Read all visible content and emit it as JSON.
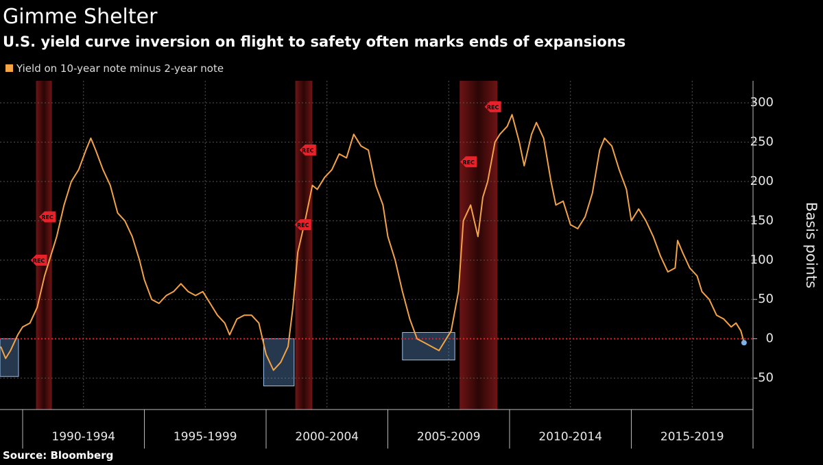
{
  "chart_data": {
    "type": "line",
    "title": "Gimme Shelter",
    "subtitle": "U.S. yield curve inversion on flight to safety often marks ends of expansions",
    "y_label": "Basis points",
    "source": "Source: Bloomberg",
    "xlim": [
      1989.07,
      2020
    ],
    "xticks": [
      {
        "value": 1992.5,
        "label": "1990-1994"
      },
      {
        "value": 1997.5,
        "label": "1995-1999"
      },
      {
        "value": 2002.5,
        "label": "2000-2004"
      },
      {
        "value": 2007.5,
        "label": "2005-2009"
      },
      {
        "value": 2012.5,
        "label": "2010-2014"
      },
      {
        "value": 2017.5,
        "label": "2015-2019"
      }
    ],
    "period_bounds": [
      1990,
      1995,
      2000,
      2005,
      2010,
      2015,
      2020
    ],
    "ylim": [
      -90,
      328
    ],
    "yticks": [
      -50,
      0,
      50,
      100,
      150,
      200,
      250,
      300
    ],
    "grid": true,
    "reference_line": 0,
    "x": [
      1989.1,
      1989.3,
      1989.5,
      1989.8,
      1990.0,
      1990.3,
      1990.6,
      1990.9,
      1991.1,
      1991.4,
      1991.7,
      1992.0,
      1992.3,
      1992.6,
      1992.8,
      1993.0,
      1993.3,
      1993.6,
      1993.9,
      1994.2,
      1994.5,
      1994.8,
      1995.0,
      1995.3,
      1995.6,
      1995.9,
      1996.2,
      1996.5,
      1996.8,
      1997.1,
      1997.4,
      1997.7,
      1998.0,
      1998.3,
      1998.5,
      1998.8,
      1999.1,
      1999.4,
      1999.7,
      2000.0,
      2000.3,
      2000.6,
      2000.9,
      2001.1,
      2001.3,
      2001.6,
      2001.9,
      2002.1,
      2002.4,
      2002.7,
      2003.0,
      2003.3,
      2003.6,
      2003.9,
      2004.2,
      2004.5,
      2004.8,
      2005.0,
      2005.3,
      2005.6,
      2005.9,
      2006.2,
      2006.5,
      2006.8,
      2007.1,
      2007.4,
      2007.6,
      2007.9,
      2008.1,
      2008.4,
      2008.7,
      2008.9,
      2009.1,
      2009.4,
      2009.6,
      2009.9,
      2010.1,
      2010.4,
      2010.6,
      2010.9,
      2011.1,
      2011.4,
      2011.7,
      2011.9,
      2012.2,
      2012.5,
      2012.8,
      2013.1,
      2013.4,
      2013.7,
      2013.9,
      2014.2,
      2014.5,
      2014.8,
      2015.0,
      2015.3,
      2015.6,
      2015.9,
      2016.2,
      2016.5,
      2016.8,
      2016.9,
      2017.1,
      2017.4,
      2017.7,
      2017.9,
      2018.2,
      2018.5,
      2018.8,
      2019.1,
      2019.3,
      2019.5,
      2019.63
    ],
    "series": [
      {
        "name": "Yield on 10-year note minus 2-year note",
        "color": "#f5a445",
        "values": [
          -10,
          -25,
          -15,
          5,
          15,
          20,
          40,
          80,
          100,
          130,
          170,
          200,
          215,
          240,
          255,
          240,
          215,
          195,
          160,
          150,
          130,
          100,
          75,
          50,
          45,
          55,
          60,
          70,
          60,
          55,
          60,
          45,
          30,
          20,
          5,
          25,
          30,
          30,
          20,
          -20,
          -40,
          -30,
          -10,
          40,
          110,
          150,
          195,
          190,
          205,
          215,
          235,
          230,
          260,
          245,
          240,
          195,
          170,
          130,
          100,
          60,
          25,
          0,
          -5,
          -10,
          -15,
          0,
          10,
          60,
          150,
          170,
          130,
          180,
          200,
          250,
          260,
          270,
          285,
          250,
          220,
          260,
          275,
          255,
          200,
          170,
          175,
          145,
          140,
          155,
          185,
          240,
          255,
          245,
          215,
          190,
          150,
          165,
          150,
          130,
          105,
          85,
          90,
          125,
          110,
          90,
          80,
          60,
          50,
          30,
          25,
          15,
          20,
          10,
          -5
        ]
      }
    ],
    "recessions": [
      [
        1990.55,
        1991.2
      ],
      [
        2001.2,
        2001.9
      ],
      [
        2007.95,
        2009.5
      ]
    ],
    "inversion_boxes": [
      {
        "x": [
          1989.07,
          1989.83
        ],
        "y": [
          -48,
          0
        ]
      },
      {
        "x": [
          1999.9,
          2001.15
        ],
        "y": [
          -60,
          0
        ]
      },
      {
        "x": [
          2005.6,
          2007.75
        ],
        "y": [
          -27,
          8
        ]
      }
    ],
    "rec_label": "REC",
    "rec_markers": {
      "x": [
        1990.55,
        1990.9,
        2001.4,
        2001.6,
        2008.2,
        2009.2
      ],
      "y": [
        100,
        155,
        145,
        240,
        225,
        295
      ]
    }
  }
}
